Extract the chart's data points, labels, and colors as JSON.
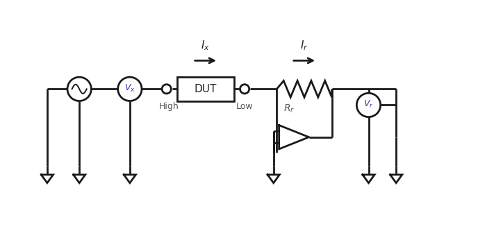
{
  "bg_color": "#ffffff",
  "line_color": "#1a1a1a",
  "line_width": 2.0,
  "fig_width": 7.24,
  "fig_height": 3.36,
  "dpi": 100,
  "labels": {
    "Ix": "I$_x$",
    "Ir": "I$_r$",
    "High": "High",
    "Low": "Low",
    "DUT": "DUT",
    "Rr": "R$_r$",
    "Vx": "V$_x$",
    "Vr": "V$_r$"
  },
  "text_color": "#555555",
  "text_color_dark": "#222222",
  "font_size_labels": 9,
  "font_size_box": 11,
  "font_size_current": 11
}
